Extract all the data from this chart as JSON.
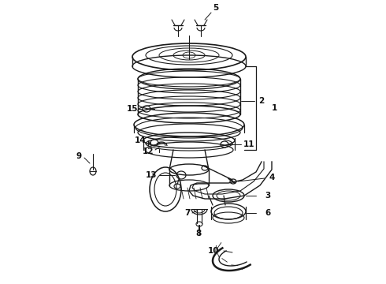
{
  "background_color": "#ffffff",
  "line_color": "#1a1a1a",
  "label_color": "#111111",
  "figsize": [
    4.9,
    3.6
  ],
  "dpi": 100
}
